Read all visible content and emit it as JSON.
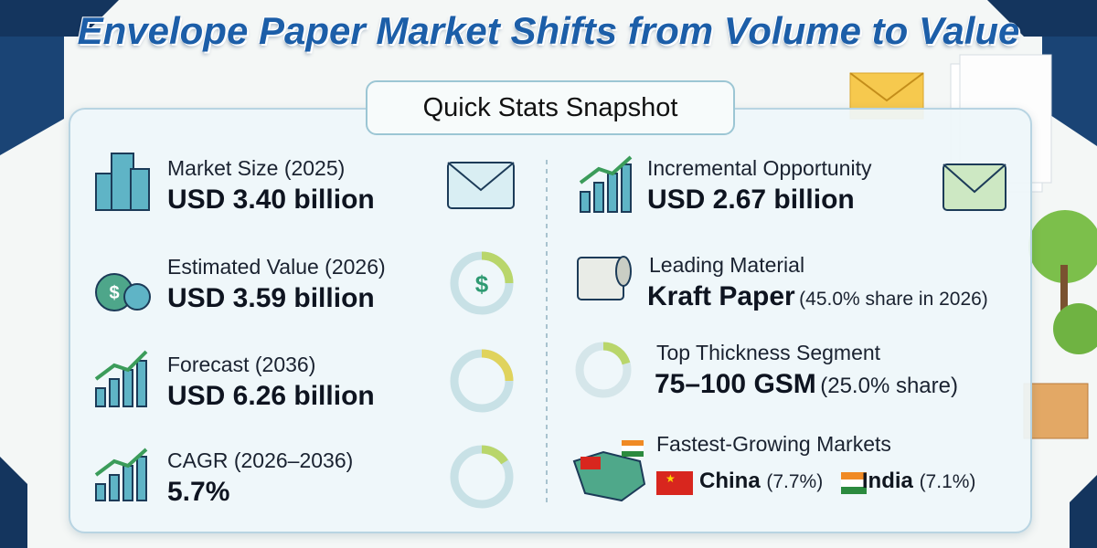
{
  "header": {
    "title": "Envelope Paper Market Shifts from Volume to Value"
  },
  "panel": {
    "title": "Quick Stats Snapshot",
    "left": [
      {
        "label": "Market Size (2025)",
        "value": "USD 3.40 billion"
      },
      {
        "label": "Estimated Value (2026)",
        "value": "USD 3.59 billion"
      },
      {
        "label": "Forecast (2036)",
        "value": "USD 6.26 billion"
      },
      {
        "label": "CAGR (2026–2036)",
        "value": "5.7%"
      }
    ],
    "right": {
      "opportunity": {
        "label": "Incremental Opportunity",
        "value": "USD 2.67 billion"
      },
      "material": {
        "label": "Leading Material",
        "value": "Kraft Paper",
        "note": "(45.0% share in 2026)"
      },
      "thickness": {
        "label": "Top Thickness Segment",
        "value": "75–100 GSM",
        "note": "(25.0% share)"
      },
      "markets": {
        "label": "Fastest-Growing Markets",
        "items": [
          {
            "name": "China",
            "share": "(7.7%)"
          },
          {
            "name": "India",
            "share": "(7.1%)"
          }
        ]
      }
    }
  }
}
